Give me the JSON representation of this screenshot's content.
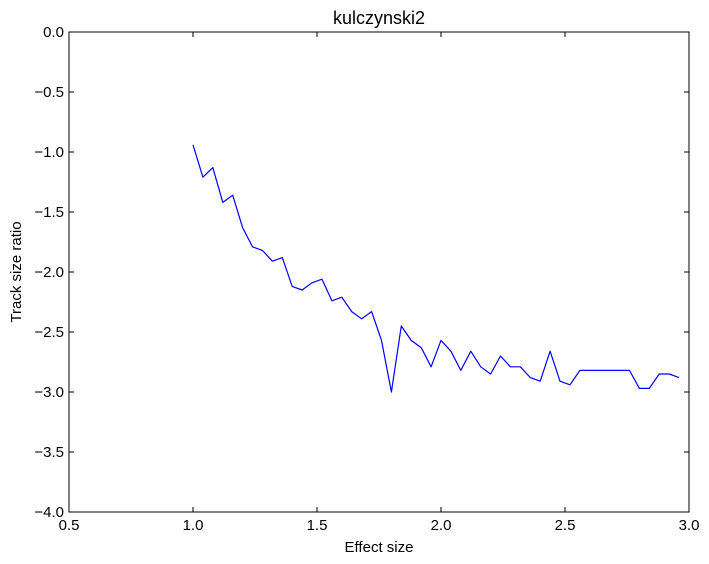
{
  "chart_data": {
    "type": "line",
    "title": "kulczynski2",
    "xlabel": "Effect size",
    "ylabel": "Track size ratio",
    "xlim": [
      0.5,
      3.0
    ],
    "ylim": [
      -4.0,
      0.0
    ],
    "xticks": [
      0.5,
      1.0,
      1.5,
      2.0,
      2.5,
      3.0
    ],
    "xtick_labels": [
      "0.5",
      "1.0",
      "1.5",
      "2.0",
      "2.5",
      "3.0"
    ],
    "yticks": [
      0.0,
      -0.5,
      -1.0,
      -1.5,
      -2.0,
      -2.5,
      -3.0,
      -3.5,
      -4.0
    ],
    "ytick_labels": [
      "0.0",
      "−0.5",
      "−1.0",
      "−1.5",
      "−2.0",
      "−2.5",
      "−3.0",
      "−3.5",
      "−4.0"
    ],
    "grid": false,
    "legend": false,
    "series": [
      {
        "color": "#0000ff",
        "x": [
          1.0,
          1.04,
          1.08,
          1.12,
          1.16,
          1.2,
          1.24,
          1.28,
          1.32,
          1.36,
          1.4,
          1.44,
          1.48,
          1.52,
          1.56,
          1.6,
          1.64,
          1.68,
          1.72,
          1.76,
          1.8,
          1.84,
          1.88,
          1.92,
          1.96,
          2.0,
          2.04,
          2.08,
          2.12,
          2.16,
          2.2,
          2.24,
          2.28,
          2.32,
          2.36,
          2.4,
          2.44,
          2.48,
          2.52,
          2.56,
          2.6,
          2.64,
          2.68,
          2.72,
          2.76,
          2.8,
          2.84,
          2.88,
          2.92,
          2.96
        ],
        "y": [
          -0.94,
          -1.21,
          -1.13,
          -1.42,
          -1.36,
          -1.63,
          -1.79,
          -1.82,
          -1.91,
          -1.88,
          -2.12,
          -2.15,
          -2.09,
          -2.06,
          -2.24,
          -2.21,
          -2.33,
          -2.39,
          -2.33,
          -2.57,
          -3.0,
          -2.45,
          -2.57,
          -2.63,
          -2.79,
          -2.57,
          -2.66,
          -2.82,
          -2.66,
          -2.79,
          -2.85,
          -2.7,
          -2.79,
          -2.79,
          -2.88,
          -2.91,
          -2.66,
          -2.91,
          -2.94,
          -2.82,
          -2.82,
          -2.82,
          -2.82,
          -2.82,
          -2.82,
          -2.97,
          -2.97,
          -2.85,
          -2.85,
          -2.88
        ]
      }
    ]
  }
}
